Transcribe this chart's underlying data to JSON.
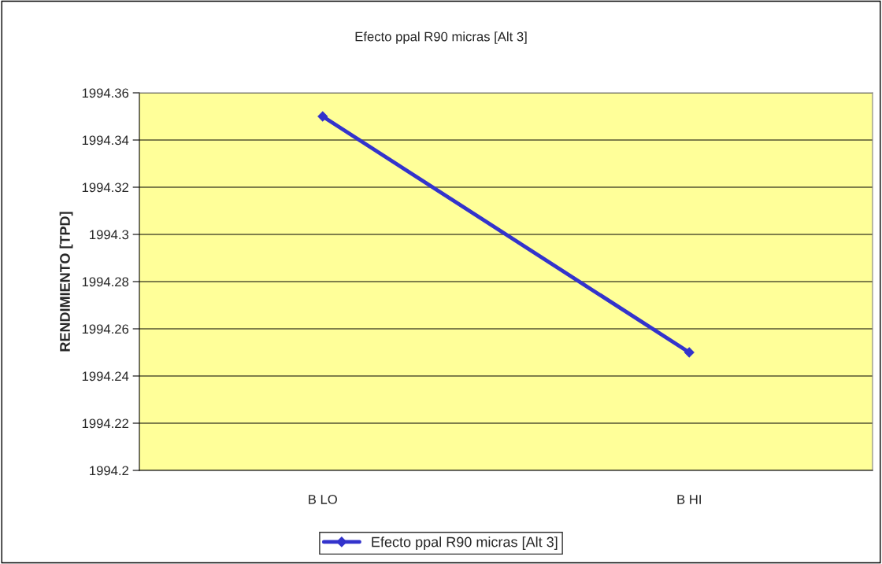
{
  "chart_data": {
    "type": "line",
    "title": "Efecto ppal R90 micras [Alt 3]",
    "ylabel": "RENDIMIENTO [TPD]",
    "categories": [
      "B LO",
      "B HI"
    ],
    "series": [
      {
        "name": "Efecto ppal R90 micras [Alt 3]",
        "color": "#3333cc",
        "values": [
          1994.35,
          1994.25
        ]
      }
    ],
    "ylim": [
      1994.2,
      1994.36
    ],
    "yticks": [
      1994.2,
      1994.22,
      1994.24,
      1994.26,
      1994.28,
      1994.3,
      1994.32,
      1994.34,
      1994.36
    ],
    "grid": "y",
    "legend": "bottom",
    "marker": "diamond",
    "line_style": "solid"
  }
}
